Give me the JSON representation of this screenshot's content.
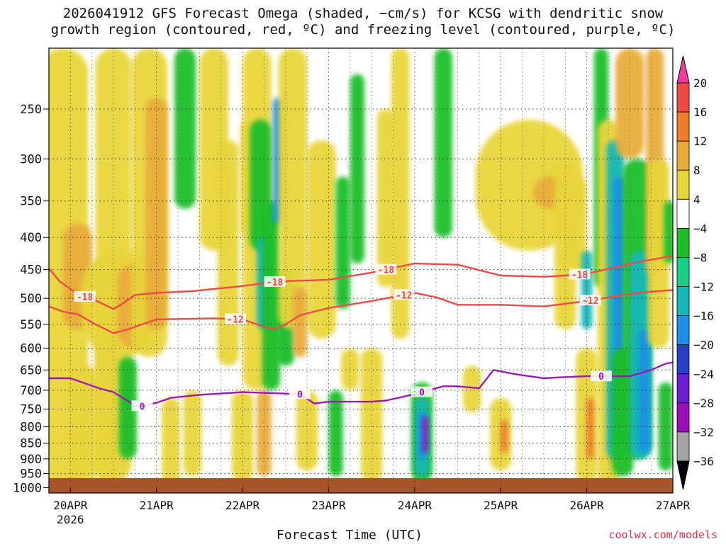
{
  "title": {
    "line1": "2026041912 GFS Forecast Omega (shaded, −cm/s) for KCSG with dendritic snow",
    "line2": "growth region (contoured, red, ºC) and freezing level (contoured, purple, ºC)"
  },
  "credit": "coolwx.com/models",
  "chart_data": {
    "type": "heatmap",
    "title": "2026041912 GFS Forecast Omega (shaded, −cm/s) for KCSG with dendritic snow growth region (contoured, red, ºC) and freezing level (contoured, purple, ºC)",
    "xlabel": "Forecast Time (UTC)",
    "ylabel": "",
    "x_ticks": [
      {
        "label": "20APR",
        "sub": "2026",
        "hours": 12
      },
      {
        "label": "21APR",
        "sub": "",
        "hours": 36
      },
      {
        "label": "22APR",
        "sub": "",
        "hours": 60
      },
      {
        "label": "23APR",
        "sub": "",
        "hours": 84
      },
      {
        "label": "24APR",
        "sub": "",
        "hours": 108
      },
      {
        "label": "25APR",
        "sub": "",
        "hours": 132
      },
      {
        "label": "26APR",
        "sub": "",
        "hours": 156
      },
      {
        "label": "27APR",
        "sub": "",
        "hours": 180
      }
    ],
    "xlim_hours": [
      6,
      180
    ],
    "y_ticks": [
      250,
      300,
      350,
      400,
      450,
      500,
      550,
      600,
      650,
      700,
      750,
      800,
      850,
      900,
      950,
      1000
    ],
    "ylim_hpa": [
      200,
      1020
    ],
    "colorbar": {
      "labels": [
        "20",
        "16",
        "12",
        "8",
        "4",
        "−4",
        "−8",
        "−12",
        "−16",
        "−20",
        "−24",
        "−28",
        "−32",
        "−36"
      ],
      "colors": [
        "#f03e9c",
        "#f04a48",
        "#ee7d2a",
        "#e8ac3a",
        "#e8d53a",
        "#ffffff",
        "#1ebe2a",
        "#16cf82",
        "#14b8b8",
        "#1a90e6",
        "#2b3ec8",
        "#6a1fd0",
        "#9a10b8",
        "#a4a4a4",
        "#000000"
      ]
    },
    "isotherms": [
      {
        "name": "-18 ºC",
        "label": "-18",
        "color": "#f04a48",
        "points": [
          [
            6,
            448
          ],
          [
            9,
            470
          ],
          [
            14,
            492
          ],
          [
            20,
            507
          ],
          [
            24,
            520
          ],
          [
            26,
            512
          ],
          [
            30,
            494
          ],
          [
            36,
            490
          ],
          [
            46,
            487
          ],
          [
            60,
            478
          ],
          [
            70,
            470
          ],
          [
            84,
            467
          ],
          [
            96,
            455
          ],
          [
            108,
            440
          ],
          [
            120,
            442
          ],
          [
            132,
            460
          ],
          [
            144,
            462
          ],
          [
            150,
            460
          ],
          [
            156,
            457
          ],
          [
            170,
            438
          ],
          [
            180,
            428
          ]
        ],
        "label_hours": [
          16,
          69,
          100,
          154
        ]
      },
      {
        "name": "-12 ºC",
        "label": "-12",
        "color": "#f04a48",
        "points": [
          [
            6,
            515
          ],
          [
            10,
            525
          ],
          [
            14,
            530
          ],
          [
            19,
            550
          ],
          [
            24,
            568
          ],
          [
            28,
            560
          ],
          [
            36,
            540
          ],
          [
            52,
            538
          ],
          [
            60,
            540
          ],
          [
            66,
            555
          ],
          [
            69,
            560
          ],
          [
            72,
            550
          ],
          [
            76,
            532
          ],
          [
            84,
            518
          ],
          [
            96,
            505
          ],
          [
            108,
            490
          ],
          [
            114,
            498
          ],
          [
            120,
            512
          ],
          [
            132,
            512
          ],
          [
            144,
            515
          ],
          [
            156,
            505
          ],
          [
            170,
            490
          ],
          [
            180,
            485
          ]
        ],
        "label_hours": [
          58,
          105,
          157
        ]
      }
    ],
    "freezing_level": {
      "name": "0 ºC",
      "label": "0",
      "color": "#9b1ab5",
      "points": [
        [
          6,
          670
        ],
        [
          12,
          670
        ],
        [
          20,
          695
        ],
        [
          24,
          705
        ],
        [
          30,
          740
        ],
        [
          32,
          742
        ],
        [
          36,
          733
        ],
        [
          40,
          720
        ],
        [
          48,
          712
        ],
        [
          60,
          705
        ],
        [
          70,
          708
        ],
        [
          76,
          710
        ],
        [
          80,
          735
        ],
        [
          84,
          730
        ],
        [
          96,
          730
        ],
        [
          100,
          727
        ],
        [
          108,
          710
        ],
        [
          112,
          700
        ],
        [
          116,
          690
        ],
        [
          120,
          690
        ],
        [
          126,
          695
        ],
        [
          130,
          650
        ],
        [
          136,
          660
        ],
        [
          144,
          670
        ],
        [
          148,
          668
        ],
        [
          156,
          665
        ],
        [
          168,
          665
        ],
        [
          170,
          660
        ],
        [
          174,
          650
        ],
        [
          178,
          635
        ],
        [
          180,
          632
        ]
      ],
      "label_hours": [
        32,
        76,
        110,
        160
      ]
    }
  }
}
